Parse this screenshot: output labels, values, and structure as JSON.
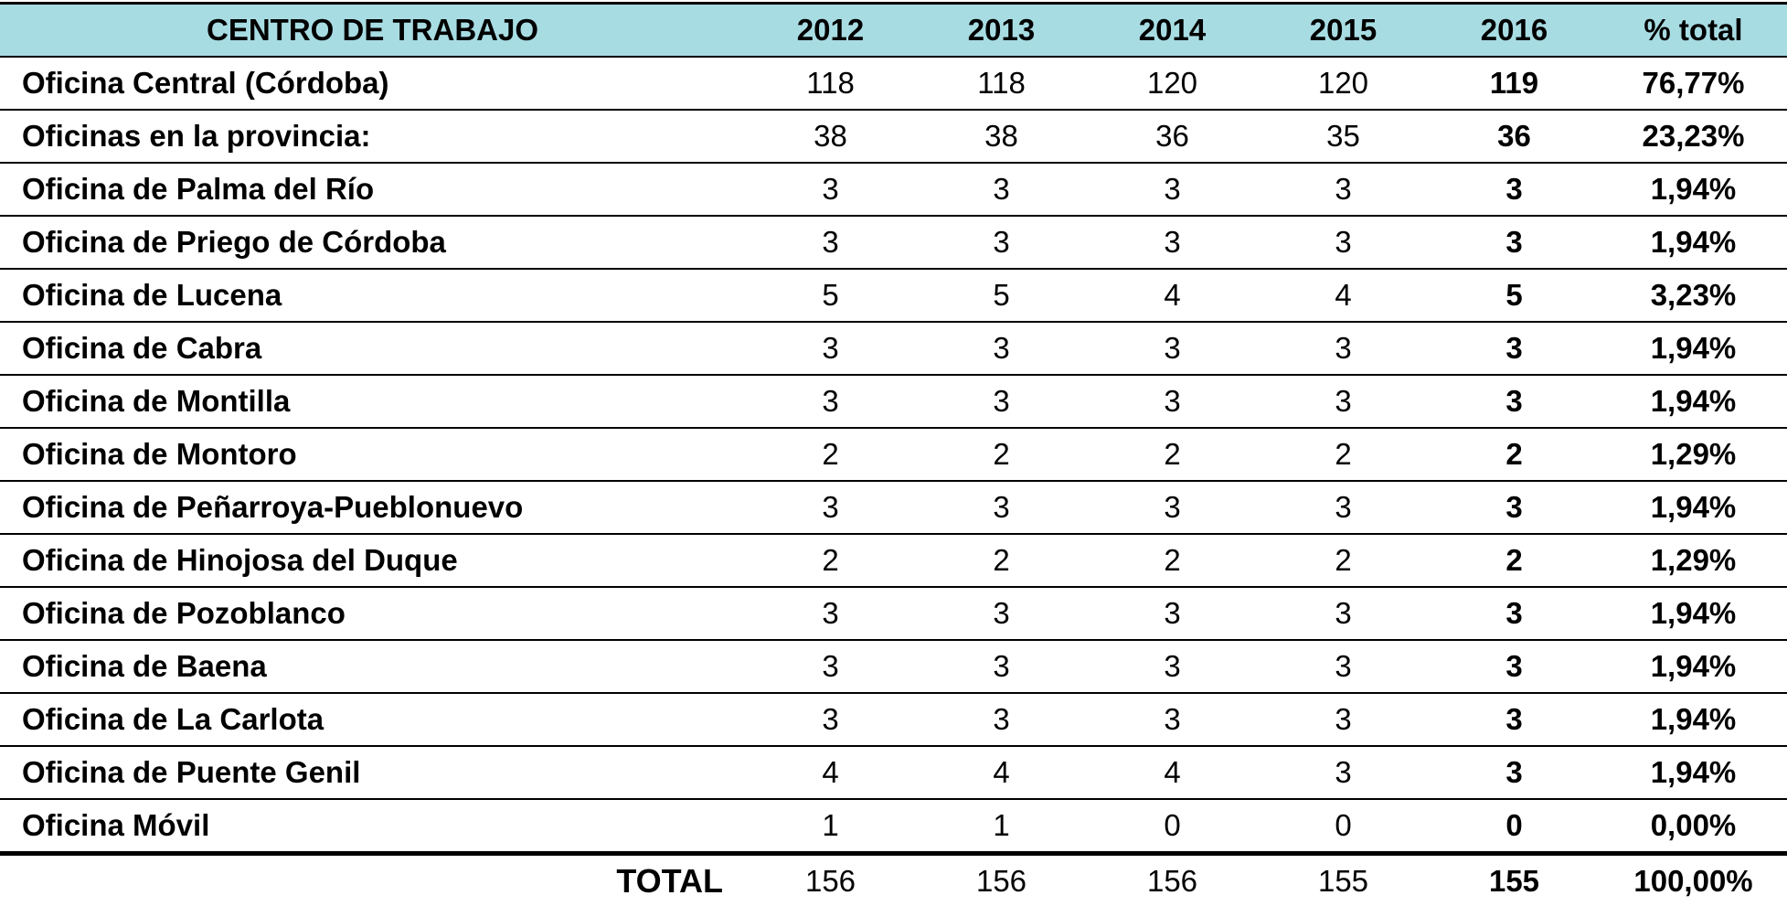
{
  "table": {
    "header": {
      "label": "CENTRO DE TRABAJO",
      "years": [
        "2012",
        "2013",
        "2014",
        "2015",
        "2016"
      ],
      "pct": "% total"
    },
    "rows": [
      {
        "label": "Oficina Central (Córdoba)",
        "values": [
          118,
          118,
          120,
          120,
          119
        ],
        "pct": "76,77%"
      },
      {
        "label": "Oficinas en la provincia:",
        "values": [
          38,
          38,
          36,
          35,
          36
        ],
        "pct": "23,23%"
      },
      {
        "label": "Oficina de Palma del Río",
        "values": [
          3,
          3,
          3,
          3,
          3
        ],
        "pct": "1,94%"
      },
      {
        "label": "Oficina de Priego de Córdoba",
        "values": [
          3,
          3,
          3,
          3,
          3
        ],
        "pct": "1,94%"
      },
      {
        "label": "Oficina de Lucena",
        "values": [
          5,
          5,
          4,
          4,
          5
        ],
        "pct": "3,23%"
      },
      {
        "label": "Oficina de Cabra",
        "values": [
          3,
          3,
          3,
          3,
          3
        ],
        "pct": "1,94%"
      },
      {
        "label": "Oficina de Montilla",
        "values": [
          3,
          3,
          3,
          3,
          3
        ],
        "pct": "1,94%"
      },
      {
        "label": "Oficina de Montoro",
        "values": [
          2,
          2,
          2,
          2,
          2
        ],
        "pct": "1,29%"
      },
      {
        "label": "Oficina de Peñarroya-Pueblonuevo",
        "values": [
          3,
          3,
          3,
          3,
          3
        ],
        "pct": "1,94%"
      },
      {
        "label": "Oficina de Hinojosa del Duque",
        "values": [
          2,
          2,
          2,
          2,
          2
        ],
        "pct": "1,29%"
      },
      {
        "label": "Oficina de Pozoblanco",
        "values": [
          3,
          3,
          3,
          3,
          3
        ],
        "pct": "1,94%"
      },
      {
        "label": "Oficina de Baena",
        "values": [
          3,
          3,
          3,
          3,
          3
        ],
        "pct": "1,94%"
      },
      {
        "label": "Oficina de La Carlota",
        "values": [
          3,
          3,
          3,
          3,
          3
        ],
        "pct": "1,94%"
      },
      {
        "label": "Oficina de Puente Genil",
        "values": [
          4,
          4,
          4,
          3,
          3
        ],
        "pct": "1,94%"
      },
      {
        "label": "Oficina Móvil",
        "values": [
          1,
          1,
          0,
          0,
          0
        ],
        "pct": "0,00%"
      }
    ],
    "total": {
      "label": "TOTAL",
      "values": [
        156,
        156,
        156,
        155,
        155
      ],
      "pct": "100,00%"
    }
  }
}
